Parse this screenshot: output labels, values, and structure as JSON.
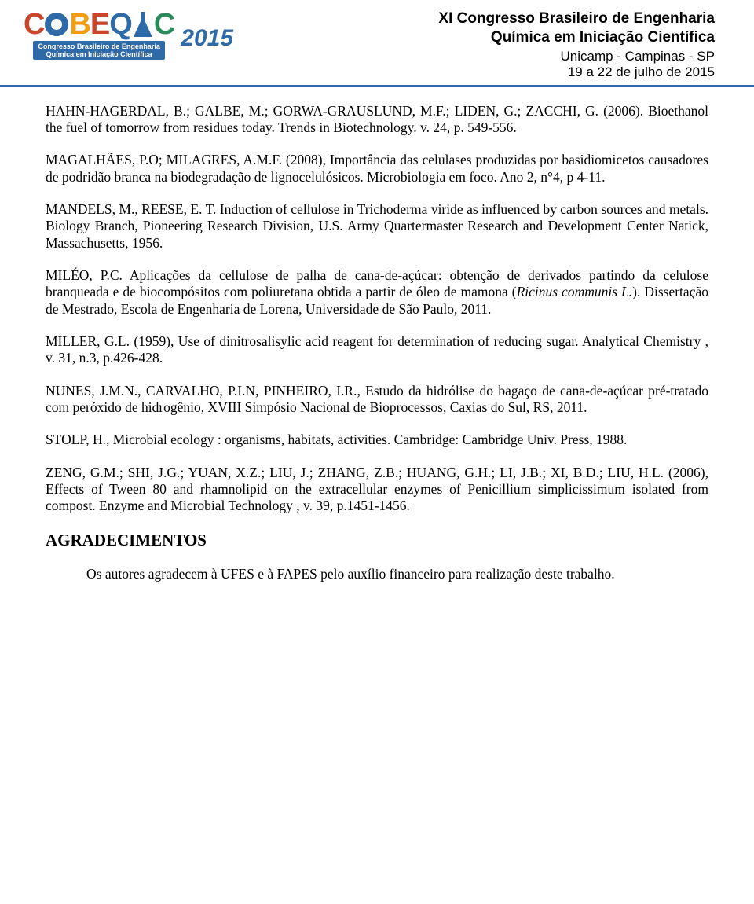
{
  "header": {
    "logo_letters": [
      "C",
      "O",
      "B",
      "E",
      "Q",
      "I",
      "C"
    ],
    "logo_subtitle_line1": "Congresso Brasileiro de Engenharia",
    "logo_subtitle_line2": "Química em Iniciação Científica",
    "year": "2015",
    "title_line1": "XI Congresso Brasileiro de Engenharia",
    "title_line2": "Química em Iniciação Científica",
    "location": "Unicamp - Campinas - SP",
    "date": "19 a 22 de julho de 2015"
  },
  "references": [
    "HAHN-HAGERDAL, B.; GALBE, M.; GORWA-GRAUSLUND, M.F.; LIDEN, G.; ZACCHI, G. (2006). Bioethanol the fuel of tomorrow from residues today. Trends in Biotechnology. v. 24, p. 549-556.",
    "MAGALHÃES, P.O; MILAGRES, A.M.F. (2008), Importância das celulases produzidas por basidiomicetos causadores de podridão branca na biodegradação de lignocelulósicos. Microbiologia em foco. Ano 2, n°4, p 4-11.",
    "MANDELS, M., REESE, E. T. Induction of cellulose in Trichoderma viride as influenced by carbon sources and metals. Biology Branch, Pioneering Research Division, U.S. Army Quartermaster Research and Development Center Natick, Massachusetts, 1956.",
    "MILÉO, P.C. Aplicações da cellulose de palha de cana-de-açúcar: obtenção de derivados partindo da celulose branqueada e de biocompósitos com poliuretana obtida a partir de óleo de mamona (Ricinus communis L.). Dissertação de Mestrado, Escola de Engenharia de Lorena, Universidade de São Paulo, 2011.",
    "MILLER, G.L. (1959), Use of dinitrosalisylic acid reagent for determination of reducing sugar. Analytical Chemistry , v. 31, n.3, p.426-428.",
    "NUNES, J.M.N., CARVALHO, P.I.N, PINHEIRO, I.R., Estudo da hidrólise do bagaço de cana-de-açúcar pré-tratado com peróxido de hidrogênio, XVIII Simpósio Nacional de Bioprocessos, Caxias do Sul, RS, 2011.",
    "STOLP, H., Microbial ecology : organisms, habitats, activities. Cambridge: Cambridge Univ. Press, 1988.",
    "ZENG, G.M.; SHI, J.G.; YUAN, X.Z.; LIU, J.; ZHANG, Z.B.; HUANG, G.H.; LI, J.B.; XI, B.D.; LIU, H.L. (2006), Effects of Tween 80 and rhamnolipid on the extracellular enzymes of Penicillium simplicissimum isolated from compost. Enzyme and Microbial Technology , v. 39, p.1451-1456."
  ],
  "acknowledgments": {
    "heading": "AGRADECIMENTOS",
    "text": "Os autores agradecem à UFES e à FAPES pelo auxílio financeiro para realização deste trabalho."
  },
  "colors": {
    "rule": "#2f6aa8",
    "orange": "#f39c12",
    "red": "#c9462c",
    "blue": "#2f6aa8",
    "green": "#2c8a5a",
    "text": "#000000",
    "background": "#ffffff"
  }
}
